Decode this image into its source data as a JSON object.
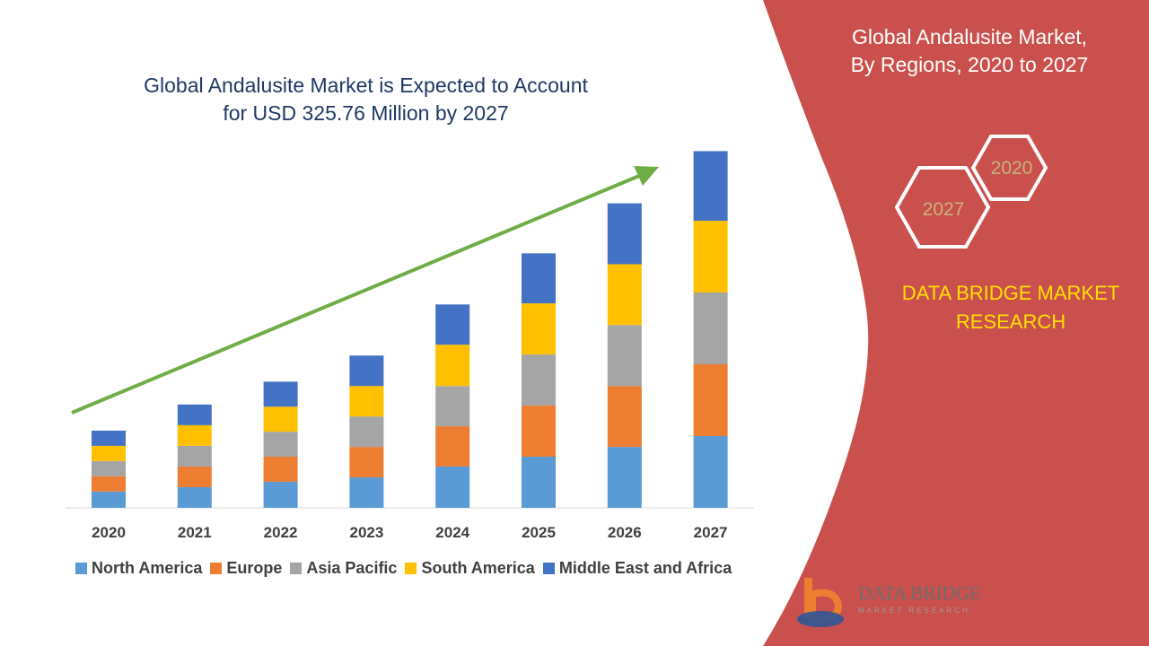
{
  "chart_data": {
    "type": "bar",
    "stacked": true,
    "title_lines": [
      "Global Andalusite Market  is Expected to Account",
      "for USD 325.76 Million by 2027"
    ],
    "categories": [
      "2020",
      "2021",
      "2022",
      "2023",
      "2024",
      "2025",
      "2026",
      "2027"
    ],
    "series": [
      {
        "name": "North America",
        "color": "#5b9bd5",
        "values": [
          15,
          19,
          24,
          28,
          38,
          47,
          56,
          66
        ]
      },
      {
        "name": "Europe",
        "color": "#ed7d31",
        "values": [
          14,
          19,
          23,
          28,
          37,
          47,
          56,
          66
        ]
      },
      {
        "name": "Asia Pacific",
        "color": "#a5a5a5",
        "values": [
          14,
          19,
          23,
          28,
          37,
          47,
          56,
          66
        ]
      },
      {
        "name": "South America",
        "color": "#ffc000",
        "values": [
          14,
          19,
          23,
          28,
          38,
          47,
          56,
          66
        ]
      },
      {
        "name": "Middle East and Africa",
        "color": "#4472c4",
        "values": [
          14,
          19,
          23,
          28,
          37,
          46,
          56,
          64
        ]
      }
    ],
    "ylim": [
      0,
      330
    ],
    "grid": false,
    "legend_position": "bottom",
    "trend_arrow_color": "#70ad47"
  },
  "panel": {
    "title_lines": [
      "Global Andalusite Market,",
      "By Regions, 2020 to 2027"
    ],
    "hexagons": [
      "2020",
      "2027"
    ],
    "brand_lines": [
      "DATA BRIDGE MARKET",
      "RESEARCH"
    ],
    "background_color": "#c9504d",
    "brand_color": "#ffe000"
  },
  "logo": {
    "name": "DATA BRIDGE",
    "tagline": "MARKET RESEARCH"
  }
}
